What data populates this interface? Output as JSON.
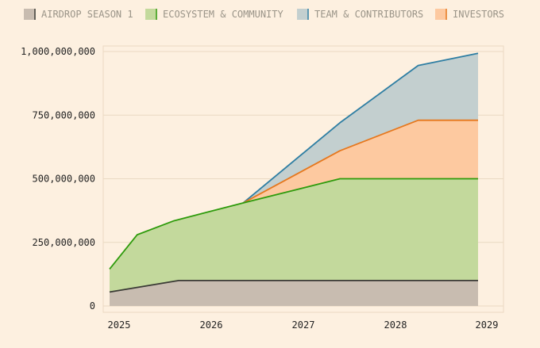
{
  "chart_data": {
    "type": "area",
    "stacked": true,
    "legend_position": "top-left",
    "grid": true,
    "xlim": [
      2025.0,
      2029.0
    ],
    "ylim": [
      0,
      1000000000
    ],
    "x_ticks": [
      2025,
      2026,
      2027,
      2028,
      2029
    ],
    "x_tick_labels": [
      "2025",
      "2026",
      "2027",
      "2028",
      "2029"
    ],
    "y_ticks": [
      0,
      250000000,
      500000000,
      750000000,
      1000000000
    ],
    "y_tick_labels": [
      "0",
      "250,000,000",
      "500,000,000",
      "750,000,000",
      "1,000,000,000"
    ],
    "series": [
      {
        "name": "AIRDROP SEASON 1",
        "fill": "#c8bcb0",
        "stroke": "#3a3a35",
        "points": [
          [
            2025.0,
            55000000
          ],
          [
            2025.75,
            100000000
          ],
          [
            2029.0,
            100000000
          ]
        ]
      },
      {
        "name": "ECOSYSTEM & COMMUNITY",
        "fill": "#c3d99c",
        "stroke": "#2e9b0c",
        "points": [
          [
            2025.0,
            145000000
          ],
          [
            2025.3,
            280000000
          ],
          [
            2025.7,
            335000000
          ],
          [
            2026.45,
            405000000
          ],
          [
            2027.5,
            500000000
          ],
          [
            2029.0,
            500000000
          ]
        ]
      },
      {
        "name": "TEAM & CONTRIBUTORS",
        "fill": "#c3cfcf",
        "stroke": "#2e7ea3",
        "points": [
          [
            2026.45,
            405000000
          ],
          [
            2027.5,
            720000000
          ],
          [
            2028.35,
            945000000
          ],
          [
            2029.0,
            993000000
          ]
        ]
      },
      {
        "name": "INVESTORS",
        "fill": "#fdc9a0",
        "stroke": "#e6781e",
        "points": [
          [
            2026.45,
            405000000
          ],
          [
            2027.5,
            610000000
          ],
          [
            2028.35,
            730000000
          ],
          [
            2029.0,
            730000000
          ]
        ]
      }
    ]
  }
}
